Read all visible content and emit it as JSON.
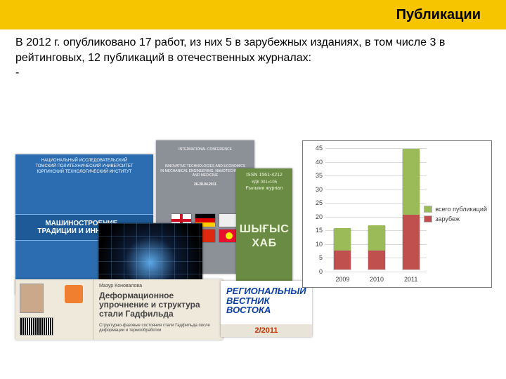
{
  "header": {
    "title": "Публикации"
  },
  "body": {
    "paragraph": "В 2012 г. опубликовано 17 работ, из них 5 в зарубежных изданиях, в том числе 3 в рейтинговых, 12 публикаций в отечественных журналах:",
    "dash": "-"
  },
  "covers": {
    "blue_univ": {
      "org_lines": "НАЦИОНАЛЬНЫЙ ИССЛЕДОВАТЕЛЬСКИЙ\nТОМСКИЙ ПОЛИТЕХНИЧЕСКИЙ УНИВЕРСИТЕТ\nЮРГИНСКИЙ ТЕХНОЛОГИЧЕСКИЙ ИНСТИТУТ",
      "band": "МАШИНОСТРОЕНИЕ –\nТРАДИЦИИ И ИННОВАЦИИ"
    },
    "gray_conf": {
      "top_lines": "INTERNATIONAL CONFERENCE",
      "mid_lines": "INNOVATIVE TECHNOLOGIES AND ECONOMICS\nIN MECHANICAL ENGINEERING, NANOTECHNOLOGY\nAND MEDICINE",
      "dates": "26-28.04.2011"
    },
    "beige_book": {
      "author": "Мазур Коновалова",
      "title": "Деформационное упрочнение и структура стали Гадфильда",
      "subtitle": "Структурно-фазовые состояния стали Гадфильда после деформации и термообработки"
    },
    "green_journal": {
      "top": "ISSN 1561-4212",
      "subtop": "Ғылыми журнал",
      "big1": "ШЫҒЫС",
      "big2": "ХАБ",
      "mid": "УДК 001«105"
    },
    "vestnik": {
      "title": "РЕГИОНАЛЬНЫЙ ВЕСТНИК ВОСТОКА",
      "issue": "2/2011"
    }
  },
  "chart": {
    "type": "stacked-bar",
    "y_max": 45,
    "y_tick_step": 5,
    "categories": [
      "2009",
      "2010",
      "2011"
    ],
    "series": [
      {
        "name": "зарубеж",
        "color": "#c0504d",
        "values": [
          7,
          7,
          20
        ]
      },
      {
        "name": "всего публикаций",
        "color": "#9bbb59",
        "values": [
          8,
          9,
          24
        ]
      }
    ],
    "legend": [
      {
        "label": "всего публикаций",
        "color": "#9bbb59"
      },
      {
        "label": "зарубеж",
        "color": "#c0504d"
      }
    ],
    "background": "#ffffff",
    "grid_color": "#d9d9d9",
    "border_color": "#7a7a7a",
    "label_fontsize": 9
  }
}
